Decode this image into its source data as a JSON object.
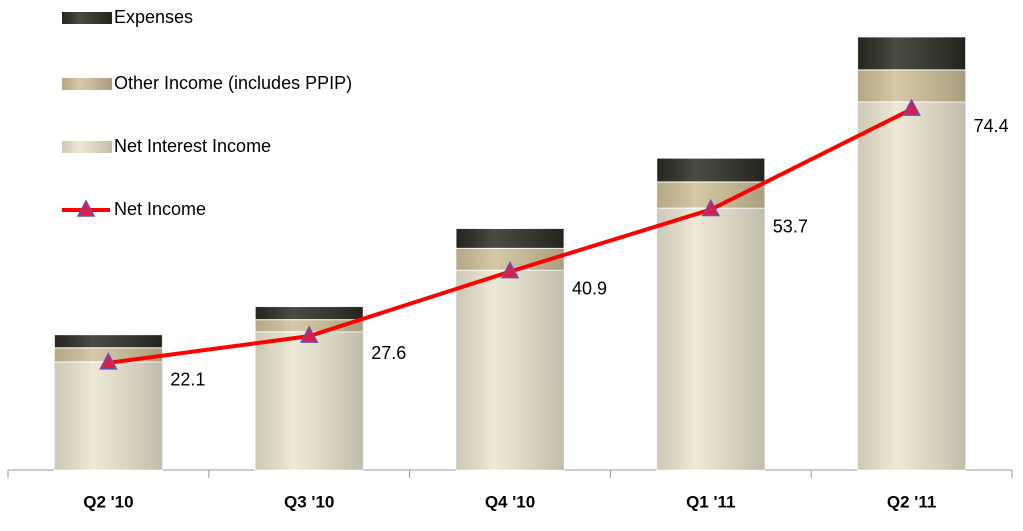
{
  "chart_data": {
    "type": "bar",
    "stacked": true,
    "categories": [
      "Q2 '10",
      "Q3 '10",
      "Q4 '10",
      "Q1 '11",
      "Q2 '11"
    ],
    "ylim": [
      0,
      90
    ],
    "series": [
      {
        "name": "Net Interest Income",
        "color": "#ebe5d0",
        "values": [
          22.3,
          28.5,
          41.2,
          54.0,
          75.9
        ]
      },
      {
        "name": "Other Income (includes PPIP)",
        "color": "#cdbf98",
        "values": [
          2.9,
          2.5,
          4.5,
          5.4,
          6.6
        ]
      },
      {
        "name": "Expenses",
        "color": "#2b2a22",
        "values": [
          2.7,
          2.7,
          4.1,
          4.9,
          6.8
        ]
      },
      {
        "name": "Net Income",
        "type": "line",
        "color": "#ff0000",
        "marker_color": "#d6204a",
        "values": [
          22.1,
          27.6,
          40.9,
          53.7,
          74.4
        ]
      }
    ],
    "legend": "upper left"
  }
}
